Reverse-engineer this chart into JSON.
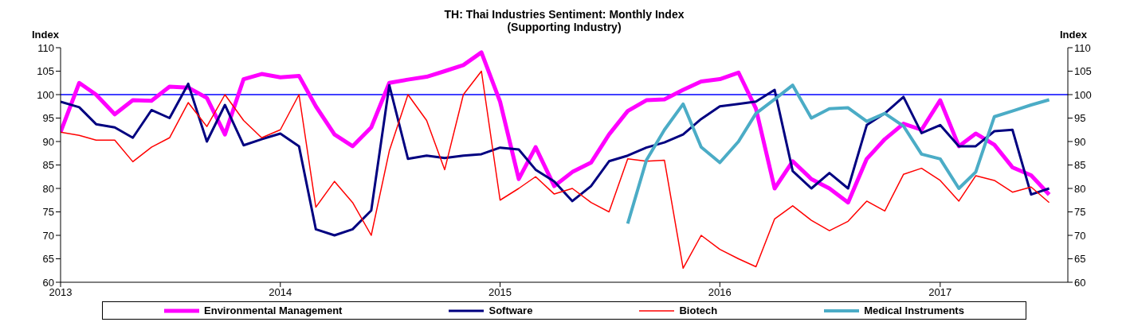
{
  "chart_data": {
    "type": "line",
    "title": "TH: Thai Industries Sentiment: Monthly Index",
    "subtitle": "(Supporting Industry)",
    "ylabel": "Index",
    "y2label": "Index",
    "x": [
      "2013-01",
      "2013-02",
      "2013-03",
      "2013-04",
      "2013-05",
      "2013-06",
      "2013-07",
      "2013-08",
      "2013-09",
      "2013-10",
      "2013-11",
      "2013-12",
      "2014-01",
      "2014-02",
      "2014-03",
      "2014-04",
      "2014-05",
      "2014-06",
      "2014-07",
      "2014-08",
      "2014-09",
      "2014-10",
      "2014-11",
      "2014-12",
      "2015-01",
      "2015-02",
      "2015-03",
      "2015-04",
      "2015-05",
      "2015-06",
      "2015-07",
      "2015-08",
      "2015-09",
      "2015-10",
      "2015-11",
      "2015-12",
      "2016-01",
      "2016-02",
      "2016-03",
      "2016-04",
      "2016-05",
      "2016-06",
      "2016-07",
      "2016-08",
      "2016-09",
      "2016-10",
      "2016-11",
      "2016-12",
      "2017-01",
      "2017-02",
      "2017-03",
      "2017-04",
      "2017-05",
      "2017-06",
      "2017-07"
    ],
    "series": [
      {
        "name": "Environmental Management",
        "color": "#ff00ff",
        "values": [
          92,
          102.5,
          100,
          95.8,
          98.8,
          98.7,
          101.7,
          101.5,
          99.3,
          91.5,
          103.3,
          104.4,
          103.7,
          104,
          97.5,
          91.5,
          89,
          93,
          102.5,
          103.2,
          103.8,
          105,
          106.3,
          109,
          98.5,
          82,
          88.8,
          80.5,
          83.5,
          85.5,
          91.5,
          96.5,
          98.8,
          99,
          101,
          102.8,
          103.3,
          104.7,
          97,
          80,
          85.8,
          82,
          80,
          77,
          86.3,
          90.5,
          93.8,
          92.5,
          98.8,
          89,
          91.7,
          89.3,
          84.5,
          82.8,
          78.7
        ]
      },
      {
        "name": "Software",
        "color": "#000080",
        "values": [
          98.5,
          97.3,
          93.7,
          93,
          90.8,
          96.7,
          95,
          102.3,
          90,
          97.8,
          89.2,
          90.5,
          91.7,
          89,
          71.3,
          70,
          71.3,
          75.3,
          102,
          86.3,
          87,
          86.5,
          87,
          87.3,
          88.7,
          88.3,
          84,
          81.5,
          77.3,
          80.5,
          85.8,
          87,
          88.7,
          89.8,
          91.5,
          94.8,
          97.5,
          98,
          98.5,
          101,
          83.7,
          80,
          83.3,
          80,
          93.5,
          96,
          99.5,
          91.8,
          93.5,
          89,
          89,
          92.2,
          92.5,
          78.7,
          80
        ]
      },
      {
        "name": "Biotech",
        "color": "#ff0000",
        "values": [
          92,
          91.3,
          90.3,
          90.3,
          85.7,
          88.8,
          90.8,
          98.3,
          93.2,
          100,
          94.5,
          90.8,
          92.5,
          100,
          76,
          81.5,
          77,
          70,
          88,
          100,
          94.5,
          84,
          100,
          105,
          77.5,
          80,
          82.5,
          78.8,
          80,
          77,
          75,
          86.3,
          85.8,
          86,
          63,
          70,
          67,
          65,
          63.3,
          73.5,
          76.3,
          73.2,
          71,
          73,
          77.3,
          75.2,
          83,
          84.3,
          81.7,
          77.3,
          82.7,
          81.7,
          79.2,
          80.3,
          77
        ]
      },
      {
        "name": "Medical Instruments",
        "color": "#4bacc6",
        "values": [
          null,
          null,
          null,
          null,
          null,
          null,
          null,
          null,
          null,
          null,
          null,
          null,
          null,
          null,
          null,
          null,
          null,
          null,
          null,
          null,
          null,
          null,
          null,
          null,
          null,
          null,
          null,
          null,
          null,
          null,
          null,
          72.5,
          86,
          92.5,
          98,
          88.8,
          85.5,
          90,
          96,
          99,
          102,
          95,
          97,
          97.2,
          94.3,
          96,
          93.3,
          87.3,
          86.3,
          80,
          83.5,
          95.3,
          96.5,
          97.8,
          98.9
        ]
      }
    ],
    "xlim": [
      "2013-01",
      "2017-08"
    ],
    "xticks": [
      "2013",
      "2014",
      "2015",
      "2016",
      "2017"
    ],
    "ylim": [
      60,
      110
    ],
    "yticks": [
      60,
      65,
      70,
      75,
      80,
      85,
      90,
      95,
      100,
      105,
      110
    ],
    "y2lim": [
      60,
      110
    ],
    "y2ticks": [
      60,
      65,
      70,
      75,
      80,
      85,
      90,
      95,
      100,
      105,
      110
    ],
    "ref_lines": [
      {
        "axis": "y",
        "value": 100,
        "color": "#0000ff",
        "line_style": "solid"
      }
    ],
    "grid": false,
    "legend": "bottom",
    "marker": "none",
    "line_style": "solid"
  }
}
